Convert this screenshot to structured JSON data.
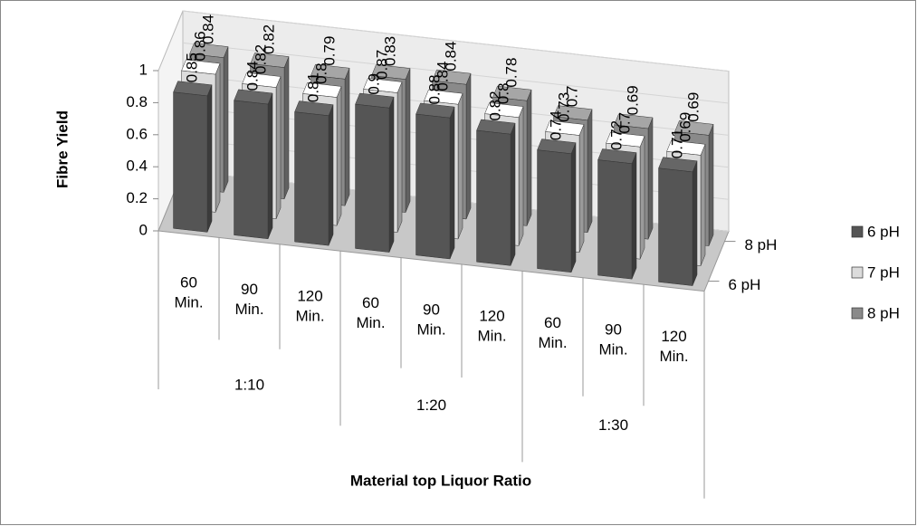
{
  "chart_data": {
    "type": "bar3d",
    "y_axis_label": "Fibre Yield",
    "x_axis_label": "Material top Liquor Ratio",
    "categories": [
      "60 Min.",
      "90 Min.",
      "120 Min.",
      "60 Min.",
      "90 Min.",
      "120 Min.",
      "60 Min.",
      "90 Min.",
      "120 Min."
    ],
    "category_groups": [
      "1:10",
      "1:20",
      "1:30"
    ],
    "depth_labels": [
      "6 pH",
      "8 pH"
    ],
    "series": [
      {
        "name": "6 pH",
        "color": "#555555",
        "values": [
          0.85,
          0.84,
          0.81,
          0.9,
          0.88,
          0.82,
          0.74,
          0.72,
          0.71
        ]
      },
      {
        "name": "7 pH",
        "color": "#dcdcdc",
        "values": [
          0.86,
          0.82,
          0.8,
          0.87,
          0.84,
          0.8,
          0.73,
          0.7,
          0.69
        ]
      },
      {
        "name": "8 pH",
        "color": "#8a8a8a",
        "values": [
          0.84,
          0.82,
          0.79,
          0.83,
          0.84,
          0.78,
          0.7,
          0.69,
          0.69
        ]
      }
    ],
    "ylim": [
      0,
      1
    ],
    "yticks": [
      0,
      0.2,
      0.4,
      0.6,
      0.8,
      1
    ],
    "legend": "right"
  }
}
